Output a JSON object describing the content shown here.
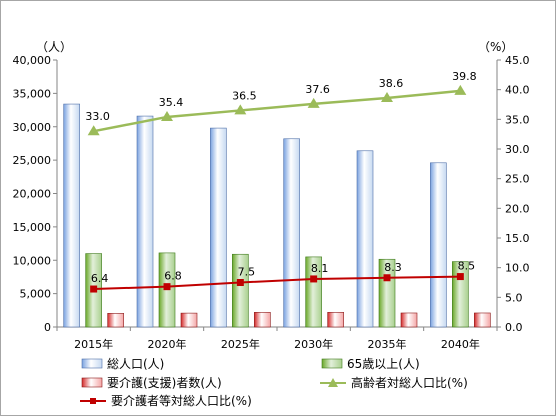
{
  "chart_data": {
    "type": "bar",
    "categories": [
      "2015年",
      "2020年",
      "2025年",
      "2030年",
      "2035年",
      "2040年"
    ],
    "y_left": {
      "unit_label": "（人）",
      "ylim": [
        0,
        40000
      ],
      "ticks": [
        "0",
        "5,000",
        "10,000",
        "15,000",
        "20,000",
        "25,000",
        "30,000",
        "35,000",
        "40,000"
      ]
    },
    "y_right": {
      "unit_label": "（%）",
      "ylim": [
        0,
        45
      ],
      "ticks": [
        "0.0",
        "5.0",
        "10.0",
        "15.0",
        "20.0",
        "25.0",
        "30.0",
        "35.0",
        "40.0",
        "45.0"
      ]
    },
    "bar_series": [
      {
        "name": "総人口(人)",
        "values": [
          33400,
          31600,
          29800,
          28200,
          26400,
          24600
        ],
        "color": "#7aa2e0"
      },
      {
        "name": "65歳以上(人)",
        "values": [
          11000,
          11100,
          10900,
          10500,
          10150,
          9800
        ],
        "color": "#76b531"
      },
      {
        "name": "要介護(支援)者数(人)",
        "values": [
          2050,
          2080,
          2200,
          2200,
          2100,
          2100
        ],
        "color": "#e03030"
      }
    ],
    "line_series": [
      {
        "name": "高齢者対総人口比(%)",
        "values": [
          33.0,
          35.4,
          36.5,
          37.6,
          38.6,
          39.8
        ],
        "labels": [
          "33.0",
          "35.4",
          "36.5",
          "37.6",
          "38.6",
          "39.8"
        ],
        "color": "#9bbb59",
        "marker": "triangle"
      },
      {
        "name": "要介護者等対総人口比(%)",
        "values": [
          6.4,
          6.8,
          7.5,
          8.1,
          8.3,
          8.5
        ],
        "labels": [
          "6.4",
          "6.8",
          "7.5",
          "8.1",
          "8.3",
          "8.5"
        ],
        "color": "#c00000",
        "marker": "square"
      }
    ],
    "legend_position": "bottom",
    "grid": false
  }
}
